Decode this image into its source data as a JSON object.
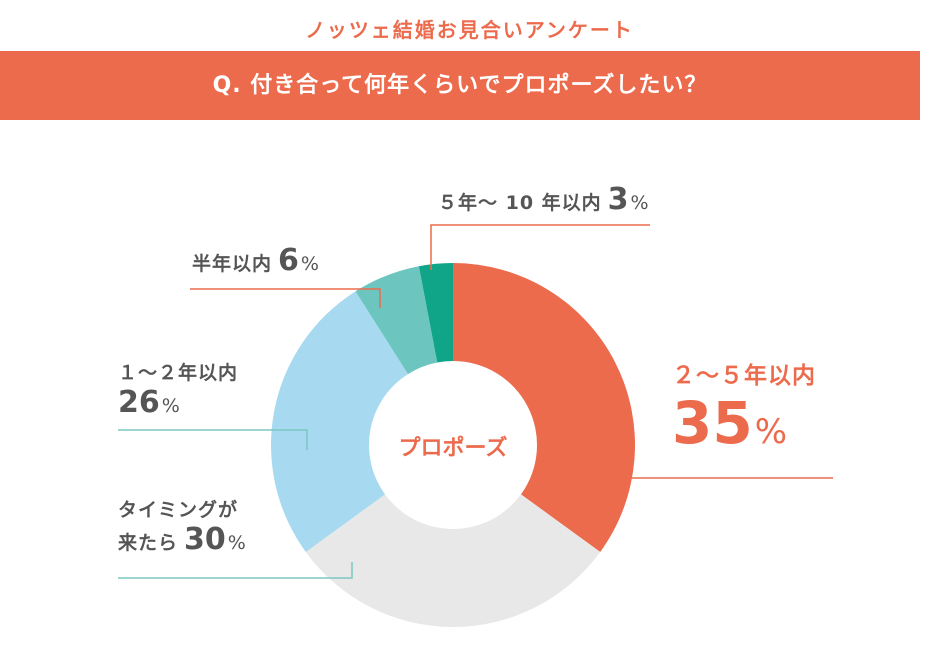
{
  "header": {
    "survey_title": "ノッツェ結婚お見合いアンケート",
    "question": "Q. 付き合って何年くらいでプロポーズしたい？"
  },
  "colors": {
    "accent": "#EC6B4D",
    "leader_line_slice": "#7AC8C3"
  },
  "chart_data": {
    "type": "pie",
    "donut": true,
    "center_label": "プロポーズ",
    "title": "Q. 付き合って何年くらいでプロポーズしたい？",
    "unit": "%",
    "slices": [
      {
        "label": "２～５年以内",
        "value": 35,
        "color": "#EC6B4D"
      },
      {
        "label": "タイミングが来たら",
        "value": 30,
        "color": "#E8E8E8"
      },
      {
        "label": "１～２年以内",
        "value": 26,
        "color": "#A7D9F0"
      },
      {
        "label": "半年以内",
        "value": 6,
        "color": "#6CC6BF"
      },
      {
        "label": "５年～ 10 年以内",
        "value": 3,
        "color": "#10A589"
      }
    ]
  },
  "labels": {
    "l_2_5": {
      "cat": "２～５年以内",
      "num": "35",
      "pct": "%"
    },
    "l_timing": {
      "cat1": "タイミングが",
      "cat2": "来たら",
      "num": "30",
      "pct": "%"
    },
    "l_1_2": {
      "cat": "１～２年以内",
      "num": "26",
      "pct": "%"
    },
    "l_half": {
      "cat": "半年以内",
      "num": "6",
      "pct": "%"
    },
    "l_5_10": {
      "cat": "５年～ 10 年以内",
      "num": "3",
      "pct": "%"
    }
  }
}
